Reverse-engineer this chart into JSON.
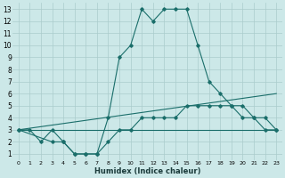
{
  "bg_color": "#cce8e8",
  "line_color": "#1a6e6a",
  "grid_color": "#aacccc",
  "xlabel": "Humidex (Indice chaleur)",
  "xlim": [
    -0.5,
    23.5
  ],
  "ylim": [
    0.5,
    13.5
  ],
  "xticks": [
    0,
    1,
    2,
    3,
    4,
    5,
    6,
    7,
    8,
    9,
    10,
    11,
    12,
    13,
    14,
    15,
    16,
    17,
    18,
    19,
    20,
    21,
    22,
    23
  ],
  "yticks": [
    1,
    2,
    3,
    4,
    5,
    6,
    7,
    8,
    9,
    10,
    11,
    12,
    13
  ],
  "line1_x": [
    0,
    1,
    2,
    3,
    4,
    5,
    6,
    7,
    8,
    9,
    10,
    11,
    12,
    13,
    14,
    15,
    16,
    17,
    18,
    19,
    20,
    21,
    22,
    23
  ],
  "line1_y": [
    3,
    3,
    2,
    3,
    2,
    1,
    1,
    1,
    4,
    9,
    10,
    13,
    12,
    13,
    13,
    13,
    10,
    7,
    6,
    5,
    4,
    4,
    3,
    3
  ],
  "line2_x": [
    0,
    3,
    4,
    5,
    6,
    7,
    8,
    9,
    10,
    11,
    12,
    13,
    14,
    15,
    16,
    17,
    18,
    19,
    20,
    21,
    22,
    23
  ],
  "line2_y": [
    3,
    2,
    2,
    1,
    1,
    1,
    2,
    3,
    3,
    4,
    4,
    4,
    4,
    5,
    5,
    5,
    5,
    5,
    5,
    4,
    4,
    3
  ],
  "line3_x": [
    0,
    23
  ],
  "line3_y": [
    3,
    6
  ],
  "line4_x": [
    0,
    23
  ],
  "line4_y": [
    3,
    3
  ]
}
